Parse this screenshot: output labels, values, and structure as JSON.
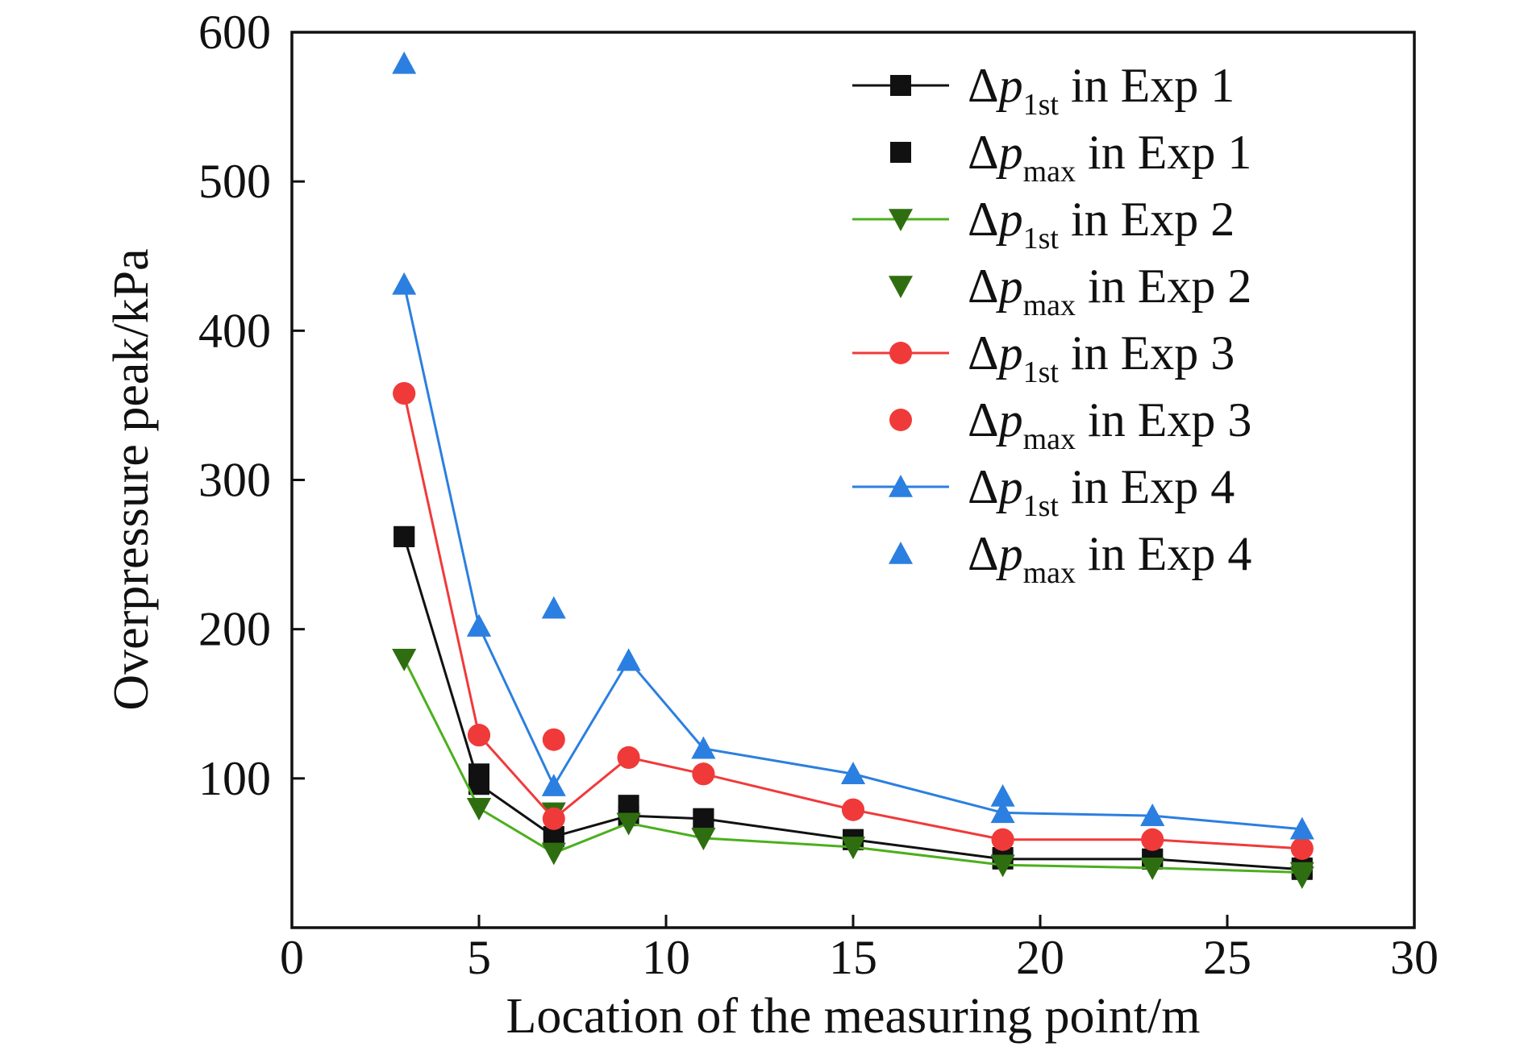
{
  "chart_data": {
    "type": "line",
    "xlabel": "Location of the measuring point/m",
    "ylabel": "Overpressure peak/kPa",
    "xlim": [
      0,
      30
    ],
    "ylim": [
      0,
      600
    ],
    "x_ticks": [
      "0",
      "5",
      "10",
      "15",
      "20",
      "25",
      "30"
    ],
    "y_ticks": [
      "100",
      "200",
      "300",
      "400",
      "500",
      "600"
    ],
    "y_tick_values": [
      100,
      200,
      300,
      400,
      500,
      600
    ],
    "x_tick_values": [
      0,
      5,
      10,
      15,
      20,
      25,
      30
    ],
    "legend_position": "top-right",
    "grid": false,
    "x": [
      3,
      5,
      7,
      9,
      11,
      15,
      19,
      23,
      27
    ],
    "series": [
      {
        "name_main": "Δp",
        "name_sub": "1st",
        "name_suffix": " in Exp 1",
        "kind": "line",
        "marker": "square",
        "color": "#111111",
        "line_color": "#111111",
        "values": [
          262,
          96,
          61,
          75,
          73,
          59,
          46,
          46,
          39
        ]
      },
      {
        "name_main": "Δp",
        "name_sub": "max",
        "name_suffix": " in Exp 1",
        "kind": "points",
        "marker": "square",
        "color": "#111111",
        "values": [
          262,
          103,
          61,
          82,
          73,
          59,
          47,
          46,
          40
        ]
      },
      {
        "name_main": "Δp",
        "name_sub": "1st",
        "name_suffix": " in Exp 2",
        "kind": "line",
        "marker": "triangle-down",
        "color": "#2f6e10",
        "line_color": "#4caf1e",
        "values": [
          180,
          80,
          50,
          70,
          60,
          54,
          42,
          40,
          37
        ]
      },
      {
        "name_main": "Δp",
        "name_sub": "max",
        "name_suffix": " in Exp 2",
        "kind": "points",
        "marker": "triangle-down",
        "color": "#2f6e10",
        "values": [
          180,
          80,
          77,
          70,
          60,
          54,
          42,
          40,
          34
        ]
      },
      {
        "name_main": "Δp",
        "name_sub": "1st",
        "name_suffix": " in Exp 3",
        "kind": "line",
        "marker": "circle",
        "color": "#f03a3a",
        "line_color": "#f03a3a",
        "values": [
          358,
          129,
          73,
          114,
          103,
          79,
          59,
          59,
          53
        ]
      },
      {
        "name_main": "Δp",
        "name_sub": "max",
        "name_suffix": " in Exp 3",
        "kind": "points",
        "marker": "circle",
        "color": "#f03a3a",
        "values": [
          358,
          129,
          126,
          114,
          103,
          79,
          59,
          59,
          53
        ]
      },
      {
        "name_main": "Δp",
        "name_sub": "1st",
        "name_suffix": "  in Exp 4",
        "kind": "line",
        "marker": "triangle-up",
        "color": "#2b7fe0",
        "line_color": "#2b7fe0",
        "values": [
          431,
          202,
          95,
          179,
          120,
          103,
          77,
          75,
          66
        ]
      },
      {
        "name_main": "Δp",
        "name_sub": "max",
        "name_suffix": " in Exp 4",
        "kind": "points",
        "marker": "triangle-up",
        "color": "#2b7fe0",
        "values": [
          579,
          202,
          214,
          179,
          120,
          103,
          88,
          75,
          66
        ]
      }
    ]
  }
}
